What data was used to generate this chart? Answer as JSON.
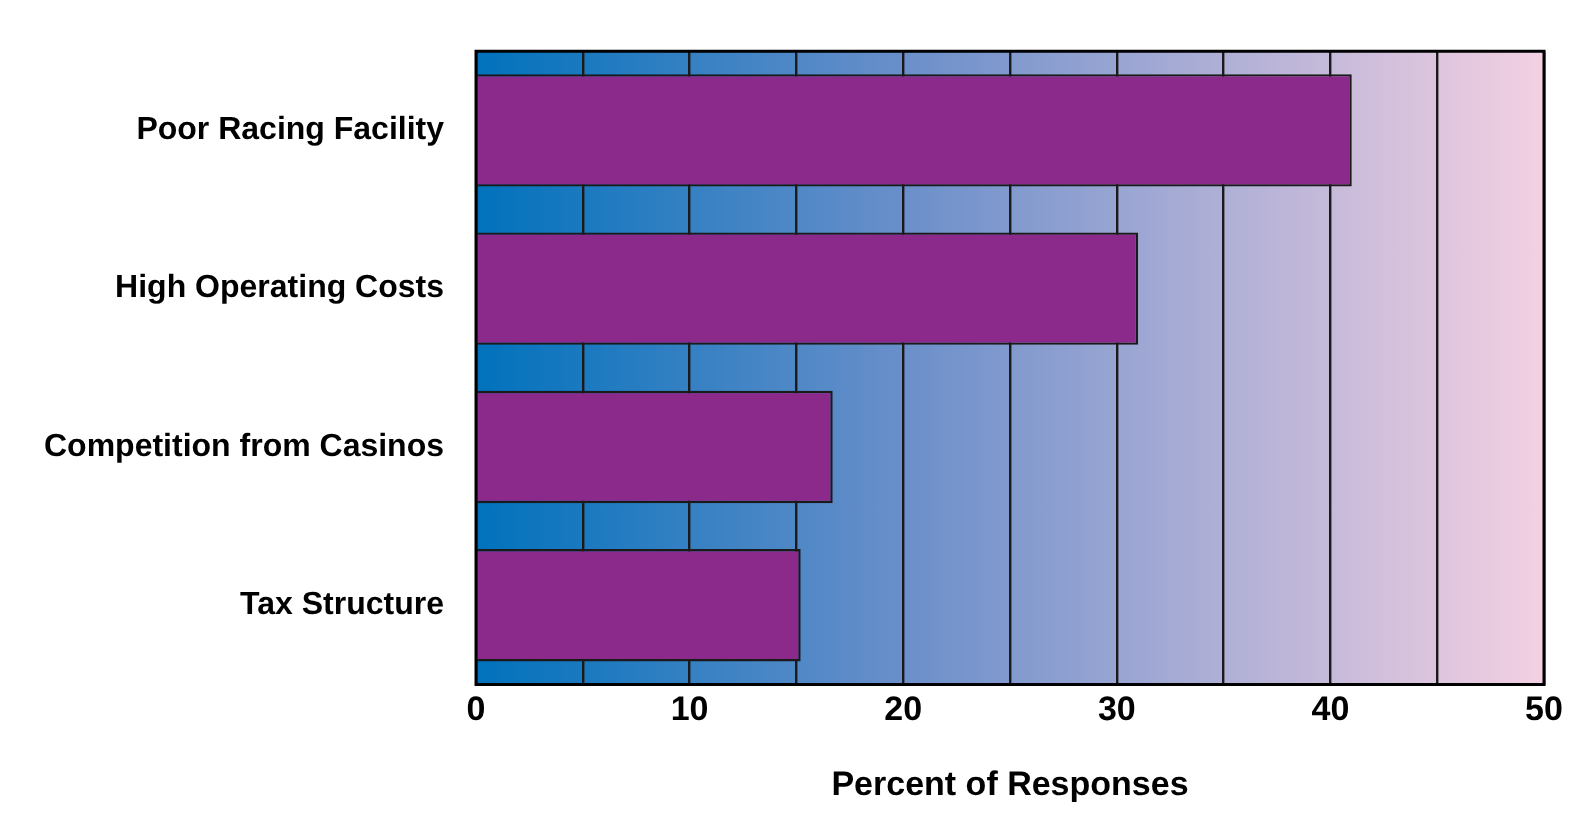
{
  "chart_data": {
    "type": "bar",
    "orientation": "horizontal",
    "xlabel": "Percent of Responses",
    "categories": [
      "Poor Racing Facility",
      "High Operating Costs",
      "Competition from Casinos",
      "Tax Structure"
    ],
    "values": [
      41,
      31,
      16.7,
      15.2
    ],
    "color": "#8b2a8b",
    "xlim": [
      0,
      50
    ],
    "xticks": [
      0,
      {
        "value": 5,
        "label": null
      },
      10,
      {
        "value": 15,
        "label": null
      },
      20,
      {
        "value": 25,
        "label": null
      },
      30,
      {
        "value": 35,
        "label": null
      },
      40,
      {
        "value": 45,
        "label": null
      },
      50
    ],
    "grid": "x",
    "legend": false
  }
}
